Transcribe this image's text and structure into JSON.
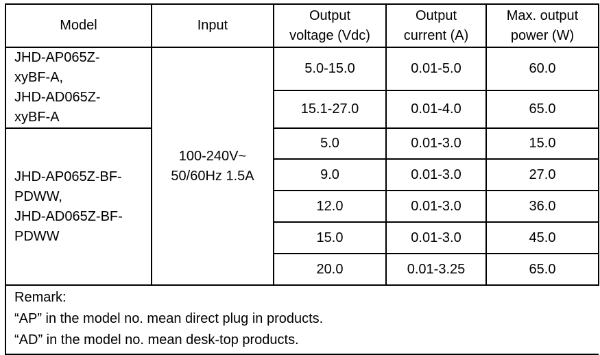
{
  "header": {
    "model": "Model",
    "input": "Input",
    "voltage": [
      "Output",
      "voltage (Vdc)"
    ],
    "current": [
      "Output",
      "current (A)"
    ],
    "power": [
      "Max. output",
      "power (W)"
    ]
  },
  "input_value": [
    "100-240V~",
    "50/60Hz 1.5A"
  ],
  "groups": [
    {
      "model": [
        "JHD-AP065Z-",
        "xyBF-A,",
        "JHD-AD065Z-",
        "xyBF-A"
      ],
      "rows": [
        {
          "voltage": "5.0-15.0",
          "current": "0.01-5.0",
          "power": "60.0"
        },
        {
          "voltage": "15.1-27.0",
          "current": "0.01-4.0",
          "power": "65.0"
        }
      ]
    },
    {
      "model": [
        "JHD-AP065Z-BF-",
        "PDWW,",
        "JHD-AD065Z-BF-",
        "PDWW"
      ],
      "rows": [
        {
          "voltage": "5.0",
          "current": "0.01-3.0",
          "power": "15.0"
        },
        {
          "voltage": "9.0",
          "current": "0.01-3.0",
          "power": "27.0"
        },
        {
          "voltage": "12.0",
          "current": "0.01-3.0",
          "power": "36.0"
        },
        {
          "voltage": "15.0",
          "current": "0.01-3.0",
          "power": "45.0"
        },
        {
          "voltage": "20.0",
          "current": "0.01-3.25",
          "power": "65.0"
        }
      ]
    }
  ],
  "remark": [
    "Remark:",
    "“AP” in the model no. mean direct plug in products.",
    "“AD” in the model no. mean desk-top products."
  ]
}
